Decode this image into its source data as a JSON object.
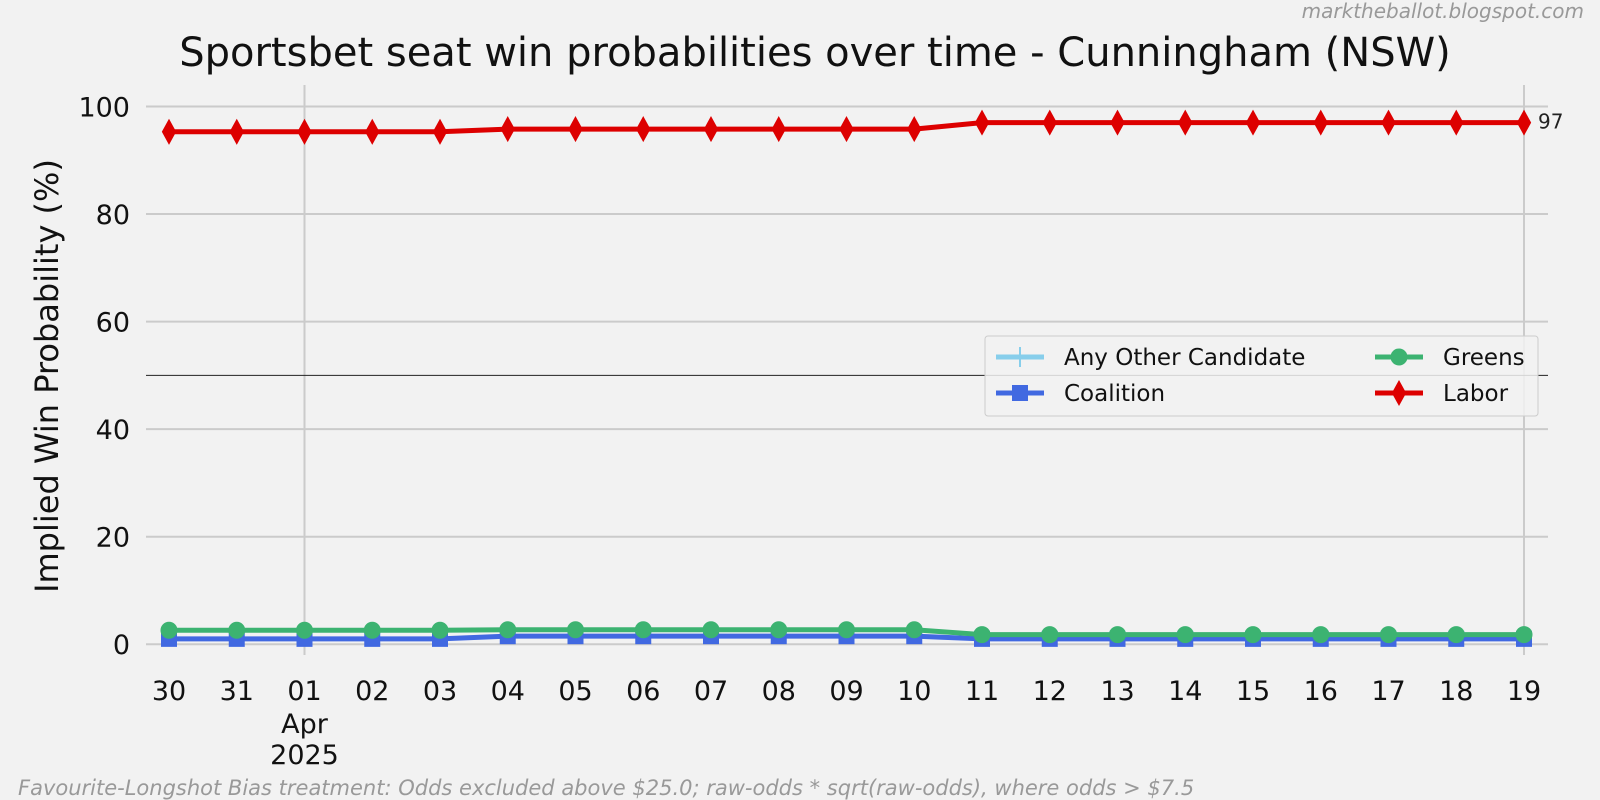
{
  "watermark": "marktheballot.blogspot.com",
  "footnote": "Favourite-Longshot Bias treatment: Odds excluded above $25.0; raw-odds * sqrt(raw-odds), where odds > $7.5",
  "chart_data": {
    "type": "line",
    "title": "Sportsbet seat win probabilities over time - Cunningham (NSW)",
    "xlabel": "",
    "ylabel": "Implied Win Probability (%)",
    "ylim": [
      -2,
      104
    ],
    "yticks": [
      0,
      20,
      40,
      60,
      80,
      100
    ],
    "reference_line": 50,
    "grid": true,
    "legend_position": "center-right",
    "x": [
      "2025-03-30",
      "2025-03-31",
      "2025-04-01",
      "2025-04-02",
      "2025-04-03",
      "2025-04-04",
      "2025-04-05",
      "2025-04-06",
      "2025-04-07",
      "2025-04-08",
      "2025-04-09",
      "2025-04-10",
      "2025-04-11",
      "2025-04-12",
      "2025-04-13",
      "2025-04-14",
      "2025-04-15",
      "2025-04-16",
      "2025-04-17",
      "2025-04-18",
      "2025-04-19"
    ],
    "xtick_labels": [
      {
        "label": "30"
      },
      {
        "label": "31"
      },
      {
        "label": "01",
        "sub": [
          "Apr",
          "2025"
        ]
      },
      {
        "label": "02"
      },
      {
        "label": "03"
      },
      {
        "label": "04"
      },
      {
        "label": "05"
      },
      {
        "label": "06"
      },
      {
        "label": "07"
      },
      {
        "label": "08"
      },
      {
        "label": "09"
      },
      {
        "label": "10"
      },
      {
        "label": "11"
      },
      {
        "label": "12"
      },
      {
        "label": "13"
      },
      {
        "label": "14"
      },
      {
        "label": "15"
      },
      {
        "label": "16"
      },
      {
        "label": "17"
      },
      {
        "label": "18"
      },
      {
        "label": "19"
      }
    ],
    "vgrid_at": [
      "2025-04-01",
      "2025-04-19"
    ],
    "series": [
      {
        "name": "Any Other Candidate",
        "color": "#87ceeb",
        "marker": "plus",
        "values": [
          null,
          null,
          null,
          null,
          null,
          null,
          null,
          null,
          null,
          null,
          null,
          null,
          null,
          null,
          null,
          null,
          null,
          null,
          null,
          null,
          null
        ]
      },
      {
        "name": "Coalition",
        "color": "#4169e1",
        "marker": "square",
        "values": [
          1.0,
          1.0,
          1.0,
          1.0,
          1.0,
          1.5,
          1.5,
          1.5,
          1.5,
          1.5,
          1.5,
          1.5,
          1.0,
          1.0,
          1.0,
          1.0,
          1.0,
          1.0,
          1.0,
          1.0,
          1.0
        ]
      },
      {
        "name": "Greens",
        "color": "#3cb371",
        "marker": "circle",
        "values": [
          2.6,
          2.6,
          2.6,
          2.6,
          2.6,
          2.7,
          2.7,
          2.7,
          2.7,
          2.7,
          2.7,
          2.7,
          1.8,
          1.8,
          1.8,
          1.8,
          1.8,
          1.8,
          1.8,
          1.8,
          1.8
        ]
      },
      {
        "name": "Labor",
        "color": "#dd0000",
        "marker": "diamond",
        "values": [
          95.3,
          95.3,
          95.3,
          95.3,
          95.3,
          95.8,
          95.8,
          95.8,
          95.8,
          95.8,
          95.8,
          95.8,
          97.0,
          97.0,
          97.0,
          97.0,
          97.0,
          97.0,
          97.0,
          97.0,
          97.0
        ]
      }
    ],
    "end_label": {
      "series": "Labor",
      "text": "97"
    }
  }
}
